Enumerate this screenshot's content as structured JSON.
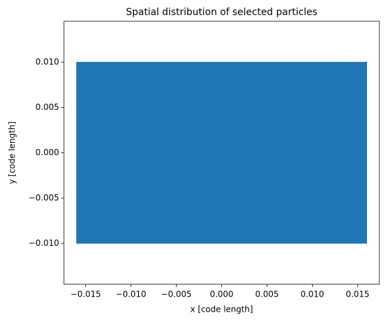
{
  "chart_data": {
    "type": "scatter",
    "title": "Spatial distribution of selected particles",
    "x_label": "x [code length]",
    "y_label": "y [code length]",
    "color": "#1f77b4",
    "xlim": [
      -0.0174,
      0.0174
    ],
    "ylim": [
      -0.0145,
      0.0145
    ],
    "xticks": [
      {
        "value": -0.015,
        "label": "−0.015"
      },
      {
        "value": -0.01,
        "label": "−0.010"
      },
      {
        "value": -0.005,
        "label": "−0.005"
      },
      {
        "value": 0,
        "label": "0.000"
      },
      {
        "value": 0.005,
        "label": "0.005"
      },
      {
        "value": 0.01,
        "label": "0.010"
      },
      {
        "value": 0.015,
        "label": "0.015"
      }
    ],
    "yticks": [
      {
        "value": -0.01,
        "label": "−0.010"
      },
      {
        "value": -0.005,
        "label": "−0.005"
      },
      {
        "value": 0,
        "label": "0.000"
      },
      {
        "value": 0.005,
        "label": "0.005"
      },
      {
        "value": 0.01,
        "label": "0.010"
      }
    ],
    "x": [
      -0.01486,
      -0.01257,
      -0.01029,
      -0.008,
      -0.00571,
      -0.00343,
      -0.00114,
      0.00114,
      0.00343,
      0.00571,
      0.008,
      0.01029,
      0.01257,
      0.01486,
      -0.01486,
      -0.01257,
      -0.01029,
      -0.008,
      -0.00571,
      -0.00343,
      -0.00114,
      0.00114,
      0.00343,
      0.00571,
      0.008,
      0.01029,
      0.01257,
      0.01486,
      -0.01486,
      -0.01257,
      -0.01029,
      -0.008,
      -0.00571,
      -0.00343,
      -0.00114,
      0.00114,
      0.00343,
      0.00571,
      0.008,
      0.01029,
      0.01257,
      0.01486,
      -0.01486,
      -0.01257,
      -0.01029,
      -0.008,
      -0.00571,
      -0.00343,
      -0.00114,
      0.00114,
      0.00343,
      0.00571,
      0.008,
      0.01029,
      0.01257,
      0.01486,
      -0.01486,
      -0.01257,
      -0.01029,
      -0.008,
      -0.00571,
      -0.00343,
      -0.00114,
      0.00114,
      0.00343,
      0.00571,
      0.008,
      0.01029,
      0.01257,
      0.01486,
      -0.01486,
      -0.01257,
      -0.01029,
      -0.008,
      -0.00571,
      -0.00343,
      -0.00114,
      0.00114,
      0.00343,
      0.00571,
      0.008,
      0.01029,
      0.01257,
      0.01486,
      -0.01486,
      -0.01257,
      -0.01029,
      -0.008,
      -0.00571,
      -0.00343,
      -0.00114,
      0.00114,
      0.00343,
      0.00571,
      0.008,
      0.01029,
      0.01257,
      0.01486,
      -0.01486,
      -0.01257,
      -0.01029,
      -0.008,
      -0.00571,
      -0.00343,
      -0.00114,
      0.00114,
      0.00343,
      0.00571,
      0.008,
      0.01029,
      0.01257,
      0.01486,
      -0.01486,
      -0.01257,
      -0.01029,
      -0.008,
      -0.00571,
      -0.00343,
      -0.00114,
      0.00114,
      0.00343,
      0.00571,
      0.008,
      0.01029,
      0.01257,
      0.01486,
      -0.01486,
      -0.01257,
      -0.01029,
      -0.008,
      -0.00571,
      -0.00343,
      -0.00114,
      0.00114,
      0.00343,
      0.00571,
      0.008,
      0.01029,
      0.01257,
      0.01486
    ],
    "y": [
      -0.009,
      -0.009,
      -0.009,
      -0.009,
      -0.009,
      -0.009,
      -0.009,
      -0.009,
      -0.009,
      -0.009,
      -0.009,
      -0.009,
      -0.009,
      -0.009,
      -0.007,
      -0.007,
      -0.007,
      -0.007,
      -0.007,
      -0.007,
      -0.007,
      -0.007,
      -0.007,
      -0.007,
      -0.007,
      -0.007,
      -0.007,
      -0.007,
      -0.005,
      -0.005,
      -0.005,
      -0.005,
      -0.005,
      -0.005,
      -0.005,
      -0.005,
      -0.005,
      -0.005,
      -0.005,
      -0.005,
      -0.005,
      -0.005,
      -0.003,
      -0.003,
      -0.003,
      -0.003,
      -0.003,
      -0.003,
      -0.003,
      -0.003,
      -0.003,
      -0.003,
      -0.003,
      -0.003,
      -0.003,
      -0.003,
      -0.001,
      -0.001,
      -0.001,
      -0.001,
      -0.001,
      -0.001,
      -0.001,
      -0.001,
      -0.001,
      -0.001,
      -0.001,
      -0.001,
      -0.001,
      -0.001,
      0.001,
      0.001,
      0.001,
      0.001,
      0.001,
      0.001,
      0.001,
      0.001,
      0.001,
      0.001,
      0.001,
      0.001,
      0.001,
      0.001,
      0.003,
      0.003,
      0.003,
      0.003,
      0.003,
      0.003,
      0.003,
      0.003,
      0.003,
      0.003,
      0.003,
      0.003,
      0.003,
      0.003,
      0.005,
      0.005,
      0.005,
      0.005,
      0.005,
      0.005,
      0.005,
      0.005,
      0.005,
      0.005,
      0.005,
      0.005,
      0.005,
      0.005,
      0.007,
      0.007,
      0.007,
      0.007,
      0.007,
      0.007,
      0.007,
      0.007,
      0.007,
      0.007,
      0.007,
      0.007,
      0.007,
      0.007,
      0.009,
      0.009,
      0.009,
      0.009,
      0.009,
      0.009,
      0.009,
      0.009,
      0.009,
      0.009,
      0.009,
      0.009,
      0.009,
      0.009
    ]
  }
}
